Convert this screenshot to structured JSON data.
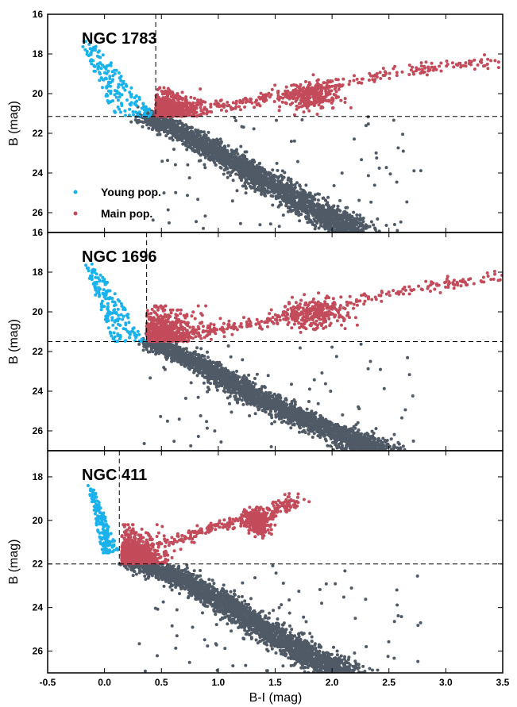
{
  "chart_data": {
    "type": "scatter",
    "xlabel": "B-I (mag)",
    "ylabel": "B (mag)",
    "xlim": [
      -0.5,
      3.5
    ],
    "x_ticks": [
      "-0.5",
      "0.0",
      "0.5",
      "1.0",
      "1.5",
      "2.0",
      "2.5",
      "3.0",
      "3.5"
    ],
    "y_inverted": true,
    "grid": false,
    "legend": {
      "placement": "lower-left of top panel",
      "entries": [
        {
          "label": "Young pop.",
          "color": "#1ab2ec"
        },
        {
          "label": "Main pop.",
          "color": "#c34b5a"
        }
      ]
    },
    "colors": {
      "young": "#1ab2ec",
      "main": "#c34b5a",
      "rest": "#4f5a66"
    },
    "panels": [
      {
        "title": "NGC 1783",
        "ylim": [
          16,
          27
        ],
        "y_ticks": [
          "16",
          "18",
          "20",
          "22",
          "24",
          "26"
        ],
        "vline_x": 0.45,
        "hline_y": 21.15,
        "young_extent": {
          "x": [
            -0.35,
            0.45
          ],
          "y": [
            17.3,
            21.15
          ]
        },
        "main_clump": {
          "x": [
            0.45,
            0.95
          ],
          "y": [
            20.0,
            21.15
          ]
        },
        "red_giant_branch": [
          [
            0.7,
            20.8
          ],
          [
            1.2,
            20.5
          ],
          [
            1.6,
            20.0
          ],
          [
            2.0,
            19.5
          ],
          [
            2.5,
            19.0
          ],
          [
            3.0,
            18.6
          ],
          [
            3.45,
            18.3
          ]
        ],
        "red_clump": {
          "x": [
            1.55,
            2.1
          ],
          "y": [
            19.5,
            20.8
          ]
        },
        "main_sequence": [
          [
            0.35,
            21.1
          ],
          [
            0.7,
            22.0
          ],
          [
            1.0,
            23.0
          ],
          [
            1.3,
            24.0
          ],
          [
            1.6,
            25.0
          ],
          [
            1.9,
            26.0
          ],
          [
            2.2,
            27.0
          ]
        ]
      },
      {
        "title": "NGC 1696",
        "ylim": [
          16,
          27
        ],
        "y_ticks": [
          "16",
          "18",
          "20",
          "22",
          "24",
          "26"
        ],
        "vline_x": 0.37,
        "hline_y": 21.5,
        "young_extent": {
          "x": [
            -0.3,
            0.37
          ],
          "y": [
            17.4,
            21.5
          ]
        },
        "main_clump": {
          "x": [
            0.37,
            0.95
          ],
          "y": [
            20.0,
            21.5
          ]
        },
        "red_giant_branch": [
          [
            0.8,
            21.0
          ],
          [
            1.2,
            20.7
          ],
          [
            1.6,
            20.2
          ],
          [
            2.0,
            19.7
          ],
          [
            2.5,
            19.1
          ],
          [
            3.0,
            18.6
          ],
          [
            3.45,
            18.2
          ]
        ],
        "red_clump": {
          "x": [
            1.55,
            2.15
          ],
          "y": [
            19.4,
            20.9
          ]
        },
        "main_sequence": [
          [
            0.4,
            21.5
          ],
          [
            0.8,
            22.5
          ],
          [
            1.1,
            23.5
          ],
          [
            1.4,
            24.5
          ],
          [
            1.8,
            25.5
          ],
          [
            2.2,
            26.5
          ],
          [
            2.4,
            27.0
          ]
        ]
      },
      {
        "title": "NGC 411",
        "ylim": [
          16.8,
          27
        ],
        "y_ticks": [
          "18",
          "20",
          "22",
          "24",
          "26"
        ],
        "vline_x": 0.13,
        "hline_y": 22.0,
        "young_extent": {
          "x": [
            -0.2,
            0.13
          ],
          "y": [
            18.4,
            21.5
          ]
        },
        "main_clump": {
          "x": [
            0.15,
            0.6
          ],
          "y": [
            20.5,
            22.0
          ]
        },
        "red_giant_branch": [
          [
            0.5,
            21.0
          ],
          [
            0.9,
            20.5
          ],
          [
            1.2,
            20.0
          ],
          [
            1.5,
            19.5
          ],
          [
            1.7,
            19.0
          ]
        ],
        "red_clump": {
          "x": [
            1.25,
            1.45
          ],
          "y": [
            19.5,
            20.6
          ]
        },
        "main_sequence": [
          [
            0.2,
            21.8
          ],
          [
            0.6,
            22.5
          ],
          [
            0.9,
            23.3
          ],
          [
            1.2,
            24.3
          ],
          [
            1.5,
            25.3
          ],
          [
            1.8,
            26.2
          ],
          [
            2.1,
            27.0
          ]
        ]
      }
    ]
  }
}
